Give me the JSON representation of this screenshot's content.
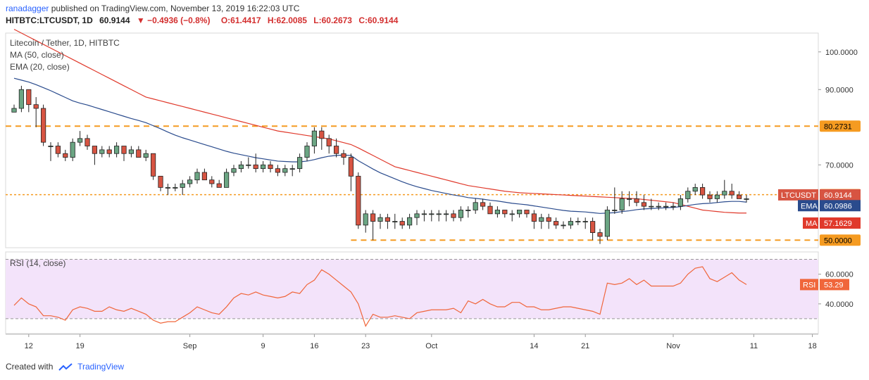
{
  "header": {
    "author": "ranadagger",
    "published": "published on TradingView.com, November 13, 2019 16:22:03 UTC",
    "symbol": "HITBTC:LTCUSDT, 1D",
    "last": "60.9144",
    "change": "−0.4936 (−0.8%)",
    "open": "O:61.4417",
    "high": "H:62.0085",
    "low": "L:60.2673",
    "close": "C:60.9144"
  },
  "legend": {
    "title": "Litecoin / Tether, 1D, HITBTC",
    "ma": "MA (50, close)",
    "ema": "EMA (20, close)",
    "rsi": "RSI (14, close)"
  },
  "footer": {
    "created": "Created with",
    "brand": "TradingView"
  },
  "colors": {
    "up": "#6ba583",
    "down": "#d75442",
    "ma": "#e0392b",
    "ema": "#2a4b8d",
    "level": "#f59b21",
    "rsi": "#f0663b",
    "rsi_band": "#f3e3fa"
  },
  "chart_data": [
    {
      "type": "candlestick",
      "title": "Litecoin / Tether, 1D, HITBTC",
      "x_tick_labels": [
        "12",
        "19",
        "Sep",
        "9",
        "16",
        "23",
        "Oct",
        "14",
        "21",
        "Nov",
        "11",
        "18"
      ],
      "y_tick_labels": [
        "100.0000",
        "90.0000",
        "70.0000"
      ],
      "ylim": [
        48,
        105
      ],
      "levels": [
        {
          "label": "80.2731",
          "value": 80.2731
        },
        {
          "label": "62.0764",
          "value": 62.0764
        },
        {
          "label": "50.0000",
          "value": 50.0
        }
      ],
      "price_tags": [
        {
          "name": "LTCUSDT",
          "label": "LTCUSDT",
          "value_label": "60.9144",
          "value": 60.9144
        },
        {
          "name": "EMA",
          "label": "EMA",
          "value_label": "60.0986",
          "value": 60.0986
        },
        {
          "name": "MA",
          "label": "MA",
          "value_label": "57.1629",
          "value": 57.1629
        }
      ],
      "candles": [
        [
          84,
          86,
          84,
          85
        ],
        [
          85,
          91,
          84,
          90
        ],
        [
          90,
          90,
          84,
          86
        ],
        [
          86,
          88,
          80,
          85
        ],
        [
          85,
          86,
          75,
          76
        ],
        [
          75,
          76,
          71,
          75
        ],
        [
          75,
          76,
          72,
          73
        ],
        [
          73,
          74,
          71,
          72
        ],
        [
          72,
          77,
          71,
          76
        ],
        [
          76,
          79,
          75,
          77
        ],
        [
          77,
          78,
          74,
          75
        ],
        [
          75,
          75,
          70,
          73
        ],
        [
          73,
          75,
          72,
          74
        ],
        [
          74,
          75,
          72,
          73
        ],
        [
          73,
          76,
          72,
          75
        ],
        [
          75,
          75,
          71,
          73
        ],
        [
          73,
          75,
          72,
          74
        ],
        [
          74,
          75,
          72,
          72
        ],
        [
          72,
          74,
          71,
          73
        ],
        [
          73,
          73,
          66,
          67
        ],
        [
          67,
          67,
          63,
          64
        ],
        [
          64,
          65,
          62,
          64
        ],
        [
          64,
          65,
          63,
          64
        ],
        [
          64,
          66,
          62,
          65
        ],
        [
          65,
          67,
          64,
          66
        ],
        [
          66,
          69,
          65,
          68
        ],
        [
          68,
          69,
          66,
          66
        ],
        [
          66,
          67,
          64,
          65
        ],
        [
          65,
          66,
          64,
          64
        ],
        [
          64,
          69,
          64,
          68
        ],
        [
          68,
          70,
          67,
          69
        ],
        [
          69,
          71,
          68,
          70
        ],
        [
          70,
          72,
          69,
          70
        ],
        [
          70,
          73,
          68,
          69
        ],
        [
          69,
          71,
          68,
          70
        ],
        [
          70,
          71,
          68,
          69
        ],
        [
          69,
          70,
          67,
          68
        ],
        [
          68,
          70,
          67,
          69
        ],
        [
          69,
          70,
          67,
          69
        ],
        [
          69,
          73,
          68,
          72
        ],
        [
          72,
          76,
          71,
          75
        ],
        [
          75,
          80,
          73,
          79
        ],
        [
          79,
          80,
          74,
          77
        ],
        [
          77,
          78,
          73,
          75
        ],
        [
          75,
          77,
          72,
          73
        ],
        [
          73,
          74,
          70,
          72
        ],
        [
          72,
          73,
          63,
          67
        ],
        [
          67,
          68,
          53,
          54
        ],
        [
          54,
          58,
          52,
          57
        ],
        [
          57,
          58,
          50,
          55
        ],
        [
          55,
          57,
          53,
          56
        ],
        [
          56,
          57,
          53,
          55
        ],
        [
          55,
          57,
          53,
          55
        ],
        [
          55,
          56,
          53,
          54
        ],
        [
          54,
          57,
          53,
          56
        ],
        [
          56,
          58,
          54,
          57
        ],
        [
          57,
          58,
          55,
          57
        ],
        [
          57,
          58,
          55,
          57
        ],
        [
          57,
          58,
          55,
          57
        ],
        [
          57,
          58,
          55,
          57
        ],
        [
          57,
          58,
          55,
          56
        ],
        [
          56,
          59,
          55,
          58
        ],
        [
          58,
          59,
          56,
          58
        ],
        [
          58,
          61,
          57,
          60
        ],
        [
          60,
          61,
          58,
          59
        ],
        [
          59,
          60,
          57,
          57
        ],
        [
          57,
          59,
          56,
          58
        ],
        [
          58,
          58,
          56,
          57
        ],
        [
          57,
          58,
          55,
          57
        ],
        [
          57,
          58,
          56,
          58
        ],
        [
          58,
          58,
          56,
          57
        ],
        [
          57,
          58,
          53,
          55
        ],
        [
          55,
          57,
          53,
          56
        ],
        [
          56,
          57,
          53,
          55
        ],
        [
          55,
          56,
          53,
          54
        ],
        [
          54,
          55,
          53,
          54
        ],
        [
          54,
          56,
          53,
          55
        ],
        [
          55,
          56,
          54,
          55
        ],
        [
          55,
          56,
          53,
          55
        ],
        [
          55,
          56,
          50,
          52
        ],
        [
          52,
          53,
          49,
          51
        ],
        [
          51,
          59,
          50,
          58
        ],
        [
          58,
          64,
          57,
          58
        ],
        [
          58,
          63,
          57,
          61
        ],
        [
          61,
          63,
          59,
          61
        ],
        [
          61,
          63,
          59,
          60
        ],
        [
          60,
          62,
          58,
          59
        ],
        [
          59,
          61,
          58,
          59
        ],
        [
          59,
          60,
          58,
          59
        ],
        [
          59,
          60,
          58,
          59
        ],
        [
          59,
          60,
          58,
          59
        ],
        [
          59,
          62,
          58,
          61
        ],
        [
          61,
          64,
          60,
          63
        ],
        [
          63,
          65,
          62,
          64
        ],
        [
          64,
          65,
          61,
          62
        ],
        [
          62,
          63,
          60,
          61
        ],
        [
          61,
          63,
          60,
          62
        ],
        [
          62,
          66,
          61,
          63
        ],
        [
          63,
          65,
          61,
          62
        ],
        [
          62,
          63,
          61,
          61
        ],
        [
          61,
          62,
          60,
          61
        ]
      ],
      "series": [
        {
          "name": "MA (50, close)",
          "values": [
            106,
            105,
            104,
            103,
            102,
            101,
            100,
            99,
            98,
            97,
            96,
            95,
            94,
            93,
            92,
            91,
            90,
            89,
            88,
            87.5,
            87,
            86.5,
            86,
            85.5,
            85,
            84.5,
            84,
            83.5,
            83,
            82.5,
            82,
            81.5,
            81,
            80.5,
            80,
            79.5,
            79,
            78.7,
            78.4,
            78.1,
            77.8,
            77.5,
            77.2,
            76.9,
            76.4,
            75.9,
            75.4,
            74.5,
            73.5,
            72.5,
            71.5,
            70.5,
            69.5,
            69,
            68.5,
            68,
            67.5,
            67,
            66.5,
            66,
            65.5,
            65,
            64.5,
            64.2,
            63.9,
            63.6,
            63.3,
            63,
            62.8,
            62.6,
            62.5,
            62.4,
            62.3,
            62.2,
            62.1,
            62,
            61.9,
            61.8,
            61.7,
            61.6,
            61.5,
            61.4,
            61.3,
            61.2,
            61.1,
            61,
            60.8,
            60.6,
            60.4,
            60.2,
            60,
            59.5,
            59,
            58.5,
            58,
            57.8,
            57.6,
            57.4,
            57.3,
            57.2,
            57.2
          ]
        },
        {
          "name": "EMA (20, close)",
          "values": [
            93,
            92.5,
            92,
            91.3,
            90.5,
            89.7,
            88.8,
            87.9,
            87,
            86.4,
            85.9,
            85.3,
            84.7,
            84.1,
            83.5,
            82.9,
            82.3,
            81.8,
            81.2,
            80.4,
            79.6,
            78.7,
            77.9,
            77.2,
            76.6,
            76,
            75.4,
            74.8,
            74.2,
            73.6,
            73.1,
            72.7,
            72.3,
            71.9,
            71.6,
            71.3,
            71,
            70.9,
            70.8,
            70.8,
            71,
            71.4,
            71.9,
            72.3,
            72.5,
            72.6,
            72.5,
            71.1,
            70,
            68.9,
            67.9,
            67.1,
            66.3,
            65.5,
            64.8,
            64.2,
            63.7,
            63.2,
            62.8,
            62.4,
            62,
            61.7,
            61.3,
            61.1,
            60.9,
            60.6,
            60.4,
            60.1,
            59.8,
            59.6,
            59.4,
            59.1,
            58.8,
            58.5,
            58.2,
            57.9,
            57.7,
            57.6,
            57.5,
            57.3,
            57.1,
            57.2,
            57.3,
            57.6,
            57.8,
            58.1,
            58.3,
            58.4,
            58.5,
            58.6,
            58.7,
            58.9,
            59.2,
            59.5,
            59.7,
            59.8,
            60,
            60.2,
            60.3,
            60.3,
            60.1
          ]
        }
      ]
    },
    {
      "type": "line",
      "title": "RSI (14, close)",
      "y_tick_labels": [
        "60.0000",
        "40.0000"
      ],
      "ylim": [
        20,
        75
      ],
      "band": [
        30,
        70
      ],
      "last_label": "53.29",
      "series": [
        {
          "name": "RSI",
          "values": [
            39,
            44,
            40,
            38,
            32,
            32,
            31,
            29,
            36,
            38,
            37,
            35,
            35,
            38,
            36,
            35,
            37,
            35,
            33,
            29,
            27,
            28,
            28,
            31,
            34,
            38,
            36,
            34,
            33,
            38,
            44,
            47,
            46,
            48,
            46,
            45,
            44,
            45,
            48,
            47,
            53,
            56,
            63,
            60,
            56,
            52,
            48,
            40,
            25,
            33,
            31,
            31,
            32,
            31,
            30,
            34,
            35,
            36,
            36,
            36,
            37,
            34,
            42,
            40,
            43,
            40,
            38,
            38,
            41,
            41,
            38,
            38,
            36,
            36,
            37,
            38,
            38,
            37,
            36,
            35,
            33,
            54,
            53,
            54,
            57,
            53,
            56,
            52,
            52,
            52,
            52,
            54,
            60,
            64,
            65,
            57,
            55,
            58,
            61,
            56,
            53
          ]
        }
      ]
    }
  ]
}
